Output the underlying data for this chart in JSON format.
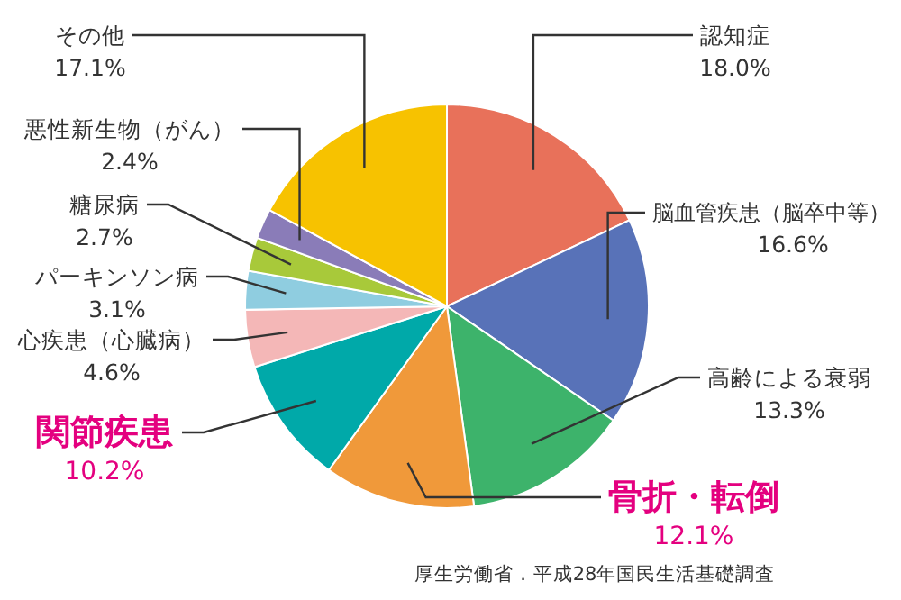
{
  "chart_data": {
    "type": "pie",
    "categories": [
      "認知症",
      "脳血管疾患（脳卒中等）",
      "高齢による衰弱",
      "骨折・転倒",
      "関節疾患",
      "心疾患（心臓病）",
      "パーキンソン病",
      "糖尿病",
      "悪性新生物（がん）",
      "その他"
    ],
    "values": [
      18.0,
      16.6,
      13.3,
      12.1,
      10.2,
      4.6,
      3.1,
      2.7,
      2.4,
      17.1
    ],
    "value_labels": [
      "18.0%",
      "16.6%",
      "13.3%",
      "12.1%",
      "10.2%",
      "4.6%",
      "3.1%",
      "2.7%",
      "2.4%",
      "17.1%"
    ],
    "colors": [
      "#e8715a",
      "#5872b8",
      "#3db36b",
      "#f0993a",
      "#00a9a9",
      "#f4b7b7",
      "#8fcde0",
      "#a8c93a",
      "#8a7cb8",
      "#f7c200"
    ],
    "annotations": [
      "厚生労働省．平成28年国民生活基礎調査"
    ]
  }
}
